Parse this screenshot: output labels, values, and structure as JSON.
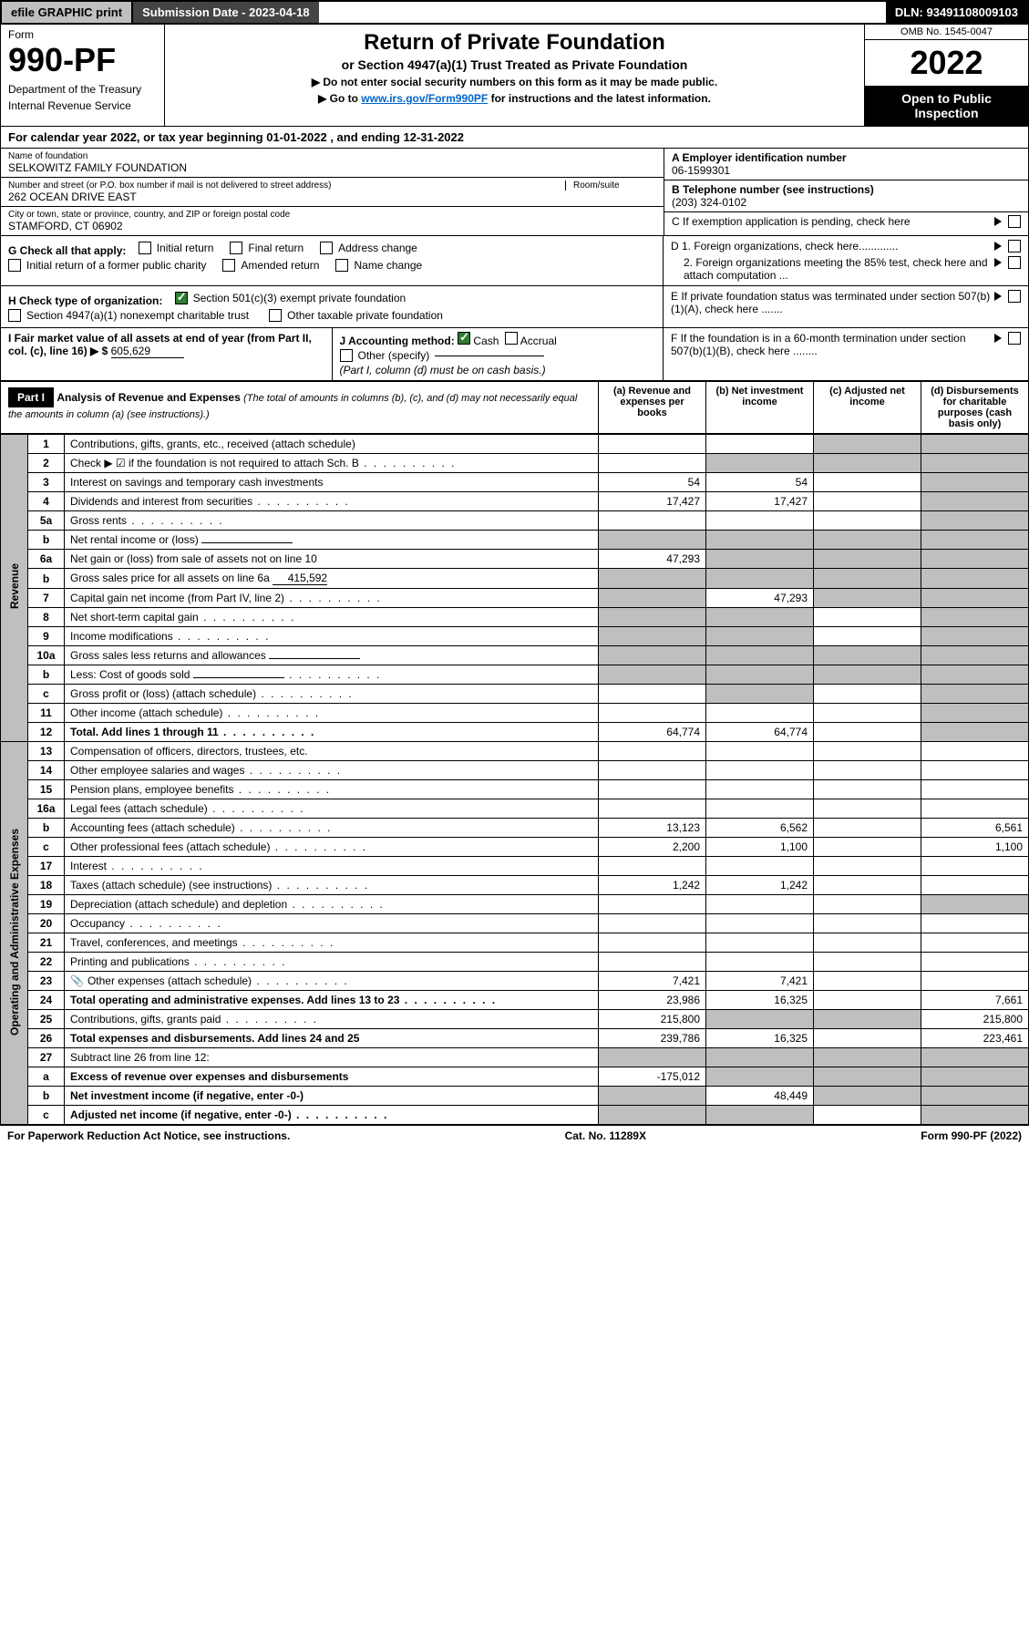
{
  "topbar": {
    "efile": "efile GRAPHIC print",
    "submission": "Submission Date - 2023-04-18",
    "dln": "DLN: 93491108009103"
  },
  "header": {
    "form_label": "Form",
    "form_number": "990-PF",
    "dept1": "Department of the Treasury",
    "dept2": "Internal Revenue Service",
    "title": "Return of Private Foundation",
    "subtitle": "or Section 4947(a)(1) Trust Treated as Private Foundation",
    "instr1": "▶ Do not enter social security numbers on this form as it may be made public.",
    "instr2_pre": "▶ Go to ",
    "instr2_link": "www.irs.gov/Form990PF",
    "instr2_post": " for instructions and the latest information.",
    "omb": "OMB No. 1545-0047",
    "year": "2022",
    "open": "Open to Public Inspection"
  },
  "calyear": "For calendar year 2022, or tax year beginning 01-01-2022                          , and ending 12-31-2022",
  "entity": {
    "name_label": "Name of foundation",
    "name": "SELKOWITZ FAMILY FOUNDATION",
    "addr_label": "Number and street (or P.O. box number if mail is not delivered to street address)",
    "addr": "262 OCEAN DRIVE EAST",
    "room_label": "Room/suite",
    "city_label": "City or town, state or province, country, and ZIP or foreign postal code",
    "city": "STAMFORD, CT  06902",
    "ein_label": "A Employer identification number",
    "ein": "06-1599301",
    "phone_label": "B Telephone number (see instructions)",
    "phone": "(203) 324-0102",
    "c_label": "C If exemption application is pending, check here",
    "d1": "D 1. Foreign organizations, check here.............",
    "d2": "2. Foreign organizations meeting the 85% test, check here and attach computation ...",
    "e_label": "E  If private foundation status was terminated under section 507(b)(1)(A), check here .......",
    "f_label": "F  If the foundation is in a 60-month termination under section 507(b)(1)(B), check here ........"
  },
  "g": {
    "label": "G Check all that apply:",
    "opts": [
      "Initial return",
      "Final return",
      "Address change",
      "Initial return of a former public charity",
      "Amended return",
      "Name change"
    ]
  },
  "h": {
    "label": "H Check type of organization:",
    "opt1": "Section 501(c)(3) exempt private foundation",
    "opt2": "Section 4947(a)(1) nonexempt charitable trust",
    "opt3": "Other taxable private foundation"
  },
  "i": {
    "label": "I Fair market value of all assets at end of year (from Part II, col. (c), line 16) ▶ $",
    "value": "605,629"
  },
  "j": {
    "label": "J Accounting method:",
    "cash": "Cash",
    "accrual": "Accrual",
    "other": "Other (specify)",
    "note": "(Part I, column (d) must be on cash basis.)"
  },
  "part1": {
    "tag": "Part I",
    "title": "Analysis of Revenue and Expenses",
    "note": "(The total of amounts in columns (b), (c), and (d) may not necessarily equal the amounts in column (a) (see instructions).)",
    "cols": [
      "(a)   Revenue and expenses per books",
      "(b)   Net investment income",
      "(c)   Adjusted net income",
      "(d)   Disbursements for charitable purposes (cash basis only)"
    ]
  },
  "sides": {
    "revenue": "Revenue",
    "expenses": "Operating and Administrative Expenses"
  },
  "rows": [
    {
      "n": "1",
      "d": "Contributions, gifts, grants, etc., received (attach schedule)",
      "a": "",
      "b": "",
      "c": "s",
      "dd": "s"
    },
    {
      "n": "2",
      "d": "Check ▶ ☑ if the foundation is not required to attach Sch. B",
      "dots": true,
      "a": "",
      "b": "s",
      "c": "s",
      "dd": "s",
      "nobold_not": true
    },
    {
      "n": "3",
      "d": "Interest on savings and temporary cash investments",
      "a": "54",
      "b": "54",
      "c": "",
      "dd": "s"
    },
    {
      "n": "4",
      "d": "Dividends and interest from securities",
      "dots": true,
      "a": "17,427",
      "b": "17,427",
      "c": "",
      "dd": "s"
    },
    {
      "n": "5a",
      "d": "Gross rents",
      "dots": true,
      "a": "",
      "b": "",
      "c": "",
      "dd": "s"
    },
    {
      "n": "b",
      "d": "Net rental income or (loss)",
      "inline": true,
      "a": "s",
      "b": "s",
      "c": "s",
      "dd": "s"
    },
    {
      "n": "6a",
      "d": "Net gain or (loss) from sale of assets not on line 10",
      "a": "47,293",
      "b": "s",
      "c": "s",
      "dd": "s"
    },
    {
      "n": "b",
      "d": "Gross sales price for all assets on line 6a",
      "inline_val": "415,592",
      "a": "s",
      "b": "s",
      "c": "s",
      "dd": "s"
    },
    {
      "n": "7",
      "d": "Capital gain net income (from Part IV, line 2)",
      "dots": true,
      "a": "s",
      "b": "47,293",
      "c": "s",
      "dd": "s"
    },
    {
      "n": "8",
      "d": "Net short-term capital gain",
      "dots": true,
      "a": "s",
      "b": "s",
      "c": "",
      "dd": "s"
    },
    {
      "n": "9",
      "d": "Income modifications",
      "dots": true,
      "a": "s",
      "b": "s",
      "c": "",
      "dd": "s"
    },
    {
      "n": "10a",
      "d": "Gross sales less returns and allowances",
      "inline": true,
      "a": "s",
      "b": "s",
      "c": "s",
      "dd": "s"
    },
    {
      "n": "b",
      "d": "Less: Cost of goods sold",
      "dots": true,
      "inline": true,
      "a": "s",
      "b": "s",
      "c": "s",
      "dd": "s"
    },
    {
      "n": "c",
      "d": "Gross profit or (loss) (attach schedule)",
      "dots": true,
      "a": "",
      "b": "s",
      "c": "",
      "dd": "s"
    },
    {
      "n": "11",
      "d": "Other income (attach schedule)",
      "dots": true,
      "a": "",
      "b": "",
      "c": "",
      "dd": "s"
    },
    {
      "n": "12",
      "d": "Total. Add lines 1 through 11",
      "dots": true,
      "bold": true,
      "a": "64,774",
      "b": "64,774",
      "c": "",
      "dd": "s"
    },
    {
      "n": "13",
      "d": "Compensation of officers, directors, trustees, etc.",
      "a": "",
      "b": "",
      "c": "",
      "dd": ""
    },
    {
      "n": "14",
      "d": "Other employee salaries and wages",
      "dots": true,
      "a": "",
      "b": "",
      "c": "",
      "dd": ""
    },
    {
      "n": "15",
      "d": "Pension plans, employee benefits",
      "dots": true,
      "a": "",
      "b": "",
      "c": "",
      "dd": ""
    },
    {
      "n": "16a",
      "d": "Legal fees (attach schedule)",
      "dots": true,
      "a": "",
      "b": "",
      "c": "",
      "dd": ""
    },
    {
      "n": "b",
      "d": "Accounting fees (attach schedule)",
      "dots": true,
      "a": "13,123",
      "b": "6,562",
      "c": "",
      "dd": "6,561"
    },
    {
      "n": "c",
      "d": "Other professional fees (attach schedule)",
      "dots": true,
      "a": "2,200",
      "b": "1,100",
      "c": "",
      "dd": "1,100"
    },
    {
      "n": "17",
      "d": "Interest",
      "dots": true,
      "a": "",
      "b": "",
      "c": "",
      "dd": ""
    },
    {
      "n": "18",
      "d": "Taxes (attach schedule) (see instructions)",
      "dots": true,
      "a": "1,242",
      "b": "1,242",
      "c": "",
      "dd": ""
    },
    {
      "n": "19",
      "d": "Depreciation (attach schedule) and depletion",
      "dots": true,
      "a": "",
      "b": "",
      "c": "",
      "dd": "s"
    },
    {
      "n": "20",
      "d": "Occupancy",
      "dots": true,
      "a": "",
      "b": "",
      "c": "",
      "dd": ""
    },
    {
      "n": "21",
      "d": "Travel, conferences, and meetings",
      "dots": true,
      "a": "",
      "b": "",
      "c": "",
      "dd": ""
    },
    {
      "n": "22",
      "d": "Printing and publications",
      "dots": true,
      "a": "",
      "b": "",
      "c": "",
      "dd": ""
    },
    {
      "n": "23",
      "d": "Other expenses (attach schedule)",
      "dots": true,
      "icon": true,
      "a": "7,421",
      "b": "7,421",
      "c": "",
      "dd": ""
    },
    {
      "n": "24",
      "d": "Total operating and administrative expenses. Add lines 13 to 23",
      "dots": true,
      "bold": true,
      "a": "23,986",
      "b": "16,325",
      "c": "",
      "dd": "7,661"
    },
    {
      "n": "25",
      "d": "Contributions, gifts, grants paid",
      "dots": true,
      "a": "215,800",
      "b": "s",
      "c": "s",
      "dd": "215,800"
    },
    {
      "n": "26",
      "d": "Total expenses and disbursements. Add lines 24 and 25",
      "bold": true,
      "a": "239,786",
      "b": "16,325",
      "c": "",
      "dd": "223,461"
    },
    {
      "n": "27",
      "d": "Subtract line 26 from line 12:",
      "a": "s",
      "b": "s",
      "c": "s",
      "dd": "s"
    },
    {
      "n": "a",
      "d": "Excess of revenue over expenses and disbursements",
      "bold": true,
      "a": "-175,012",
      "b": "s",
      "c": "s",
      "dd": "s"
    },
    {
      "n": "b",
      "d": "Net investment income (if negative, enter -0-)",
      "bold": true,
      "a": "s",
      "b": "48,449",
      "c": "s",
      "dd": "s"
    },
    {
      "n": "c",
      "d": "Adjusted net income (if negative, enter -0-)",
      "dots": true,
      "bold": true,
      "a": "s",
      "b": "s",
      "c": "",
      "dd": "s"
    }
  ],
  "footer": {
    "left": "For Paperwork Reduction Act Notice, see instructions.",
    "mid": "Cat. No. 11289X",
    "right": "Form 990-PF (2022)"
  }
}
